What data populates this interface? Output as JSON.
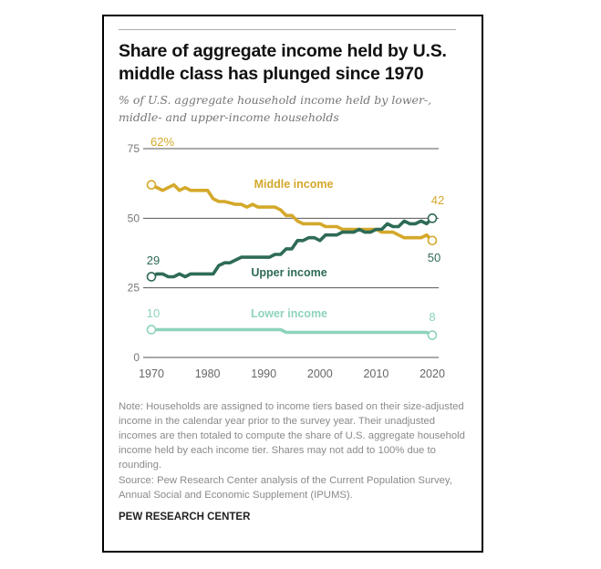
{
  "title": "Share of aggregate income held by U.S. middle class has plunged since 1970",
  "subtitle": "% of U.S. aggregate household income held by lower-, middle- and upper-income households",
  "note": "Note: Households are assigned to income tiers based on their size-adjusted income in the calendar year prior to the survey year. Their unadjusted incomes are then totaled to compute the share of U.S. aggregate household income held by each income tier. Shares may not add to 100% due to rounding.",
  "source": "Source: Pew Research Center analysis of the Current Population Survey, Annual Social and Economic Supplement (IPUMS).",
  "brand": "PEW RESEARCH CENTER",
  "chart_data": {
    "type": "line",
    "title": "Share of aggregate income held by U.S. middle class has plunged since 1970",
    "subtitle": "% of U.S. aggregate household income held by lower-, middle- and upper-income households",
    "xlim": [
      1970,
      2020
    ],
    "ylim": [
      0,
      75
    ],
    "x_ticks": [
      "1970",
      "1980",
      "1990",
      "2000",
      "2010",
      "2020"
    ],
    "y_ticks": [
      "0",
      "25",
      "50",
      "75"
    ],
    "grid": "horizontal",
    "legend": "inline labels",
    "x": [
      1970,
      1971,
      1972,
      1973,
      1974,
      1975,
      1976,
      1977,
      1978,
      1979,
      1980,
      1981,
      1982,
      1983,
      1984,
      1985,
      1986,
      1987,
      1988,
      1989,
      1990,
      1991,
      1992,
      1993,
      1994,
      1995,
      1996,
      1997,
      1998,
      1999,
      2000,
      2001,
      2002,
      2003,
      2004,
      2005,
      2006,
      2007,
      2008,
      2009,
      2010,
      2011,
      2012,
      2013,
      2014,
      2015,
      2016,
      2017,
      2018,
      2019,
      2020
    ],
    "series": [
      {
        "name": "Middle income",
        "color": "#D4A82A",
        "start_label": "62%",
        "end_label": "42",
        "values": [
          62,
          61,
          60,
          61,
          62,
          60,
          61,
          60,
          60,
          60,
          60,
          57,
          56,
          56,
          55.5,
          55,
          55,
          54,
          55,
          54,
          54,
          54,
          54,
          53,
          51,
          51,
          49,
          48,
          48,
          48,
          48,
          47,
          47,
          47,
          46,
          46,
          46,
          46,
          46,
          46,
          46,
          45,
          45,
          45,
          44,
          43,
          43,
          43,
          43,
          44,
          42
        ]
      },
      {
        "name": "Upper income",
        "color": "#2E6B55",
        "start_label": "29",
        "end_label": "50",
        "values": [
          29,
          30,
          30,
          29,
          29,
          30,
          29,
          30,
          30,
          30,
          30,
          30,
          33,
          34,
          34,
          35,
          36,
          36,
          36,
          36,
          36,
          36,
          37,
          37,
          39,
          39,
          42,
          42,
          43,
          43,
          42,
          44,
          44,
          44,
          45,
          45,
          45,
          46,
          45,
          45,
          46,
          46,
          48,
          47,
          47,
          49,
          48,
          48,
          49,
          48,
          50
        ]
      },
      {
        "name": "Lower income",
        "color": "#8ED3BB",
        "start_label": "10",
        "end_label": "8",
        "values": [
          10,
          10,
          10,
          10,
          10,
          10,
          10,
          10,
          10,
          10,
          10,
          10,
          10,
          10,
          10,
          10,
          10,
          10,
          10,
          10,
          10,
          10,
          10,
          10,
          9,
          9,
          9,
          9,
          9,
          9,
          9,
          9,
          9,
          9,
          9,
          9,
          9,
          9,
          9,
          9,
          9,
          9,
          9,
          9,
          9,
          9,
          9,
          9,
          9,
          9,
          8
        ]
      }
    ]
  }
}
